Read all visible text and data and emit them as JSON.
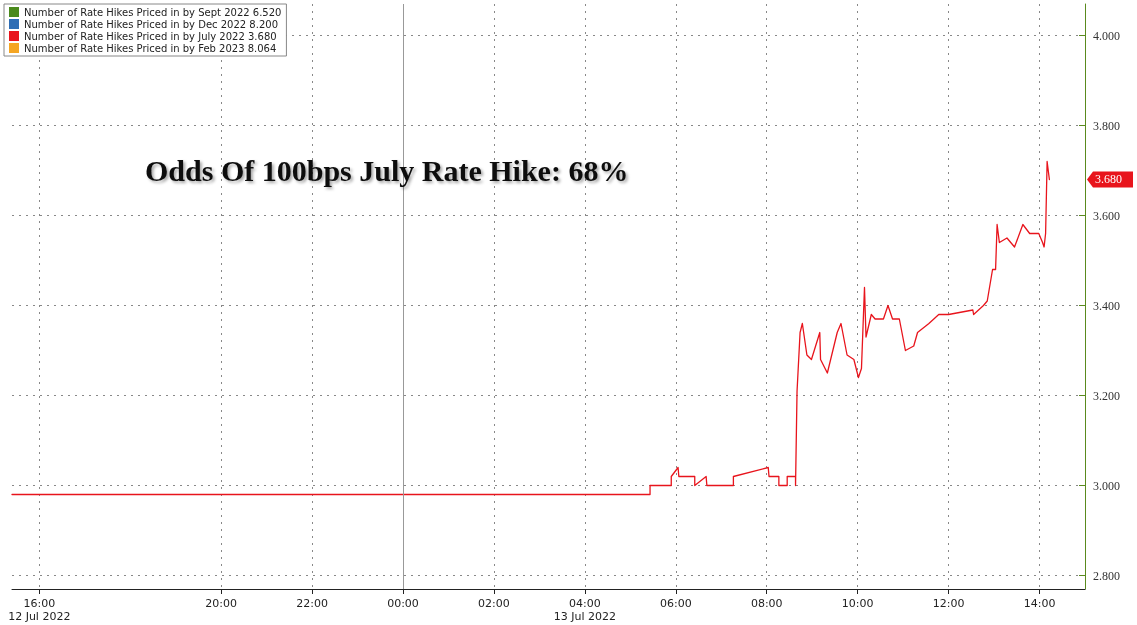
{
  "chart_data": {
    "type": "line",
    "title": "Odds Of 100bps July Rate Hike: 68%",
    "xlim": [
      "2022-07-12T15:24",
      "2022-07-13T15:00"
    ],
    "xticks": [
      {
        "value": "2022-07-12T16:00",
        "label": "16:00\n12 Jul 2022"
      },
      {
        "value": "2022-07-12T20:00",
        "label": "20:00"
      },
      {
        "value": "2022-07-12T22:00",
        "label": "22:00"
      },
      {
        "value": "2022-07-13T00:00",
        "label": "00:00"
      },
      {
        "value": "2022-07-13T02:00",
        "label": "02:00"
      },
      {
        "value": "2022-07-13T04:00",
        "label": "04:00\n13 Jul 2022"
      },
      {
        "value": "2022-07-13T06:00",
        "label": "06:00"
      },
      {
        "value": "2022-07-13T08:00",
        "label": "08:00"
      },
      {
        "value": "2022-07-13T10:00",
        "label": "10:00"
      },
      {
        "value": "2022-07-13T12:00",
        "label": "12:00"
      },
      {
        "value": "2022-07-13T14:00",
        "label": "14:00"
      }
    ],
    "ylim": [
      2.77,
      4.07
    ],
    "yticks": [
      {
        "value": 2.8,
        "label": "2.800"
      },
      {
        "value": 3.0,
        "label": "3.000"
      },
      {
        "value": 3.2,
        "label": "3.200"
      },
      {
        "value": 3.4,
        "label": "3.400"
      },
      {
        "value": 3.6,
        "label": "3.600"
      },
      {
        "value": 3.8,
        "label": "3.800"
      },
      {
        "value": 4.0,
        "label": "4.000"
      }
    ],
    "series": [
      {
        "name": "Number of Rate Hikes Priced in by Sept 2022 6.520",
        "color": "#4a8a1c"
      },
      {
        "name": "Number of Rate Hikes Priced in by Dec 2022 8.200",
        "color": "#2e6db4"
      },
      {
        "name": "Number of Rate Hikes Priced in by July 2022 3.680",
        "color": "#e8141c",
        "x": [
          "2022-07-12T15:24",
          "2022-07-13T05:26",
          "2022-07-13T05:26",
          "2022-07-13T05:54",
          "2022-07-13T05:54",
          "2022-07-13T06:03",
          "2022-07-13T06:04",
          "2022-07-13T06:25",
          "2022-07-13T06:25",
          "2022-07-13T06:40",
          "2022-07-13T06:41",
          "2022-07-13T07:16",
          "2022-07-13T07:16",
          "2022-07-13T08:02",
          "2022-07-13T08:03",
          "2022-07-13T08:16",
          "2022-07-13T08:16",
          "2022-07-13T08:27",
          "2022-07-13T08:27",
          "2022-07-13T08:38",
          "2022-07-13T08:38",
          "2022-07-13T08:40",
          "2022-07-13T08:44",
          "2022-07-13T08:47",
          "2022-07-13T08:53",
          "2022-07-13T08:59",
          "2022-07-13T09:10",
          "2022-07-13T09:11",
          "2022-07-13T09:20",
          "2022-07-13T09:33",
          "2022-07-13T09:38",
          "2022-07-13T09:46",
          "2022-07-13T09:55",
          "2022-07-13T10:01",
          "2022-07-13T10:05",
          "2022-07-13T10:09",
          "2022-07-13T10:11",
          "2022-07-13T10:18",
          "2022-07-13T10:23",
          "2022-07-13T10:34",
          "2022-07-13T10:40",
          "2022-07-13T10:46",
          "2022-07-13T10:55",
          "2022-07-13T11:03",
          "2022-07-13T11:14",
          "2022-07-13T11:19",
          "2022-07-13T11:34",
          "2022-07-13T11:47",
          "2022-07-13T12:00",
          "2022-07-13T12:32",
          "2022-07-13T12:33",
          "2022-07-13T12:46",
          "2022-07-13T12:51",
          "2022-07-13T12:58",
          "2022-07-13T13:02",
          "2022-07-13T13:04",
          "2022-07-13T13:07",
          "2022-07-13T13:17",
          "2022-07-13T13:27",
          "2022-07-13T13:38",
          "2022-07-13T13:47",
          "2022-07-13T13:59",
          "2022-07-13T14:04",
          "2022-07-13T14:06",
          "2022-07-13T14:08",
          "2022-07-13T14:10",
          "2022-07-13T14:13"
        ],
        "values": [
          2.98,
          2.98,
          3.0,
          3.0,
          3.02,
          3.04,
          3.02,
          3.02,
          3.0,
          3.02,
          3.0,
          3.0,
          3.02,
          3.04,
          3.02,
          3.02,
          3.0,
          3.0,
          3.02,
          3.02,
          3.0,
          3.21,
          3.34,
          3.36,
          3.29,
          3.28,
          3.34,
          3.28,
          3.25,
          3.34,
          3.36,
          3.29,
          3.28,
          3.24,
          3.26,
          3.44,
          3.33,
          3.38,
          3.37,
          3.37,
          3.4,
          3.37,
          3.37,
          3.3,
          3.31,
          3.34,
          3.36,
          3.38,
          3.38,
          3.39,
          3.38,
          3.4,
          3.41,
          3.48,
          3.48,
          3.58,
          3.54,
          3.55,
          3.53,
          3.58,
          3.56,
          3.56,
          3.54,
          3.53,
          3.56,
          3.72,
          3.68
        ]
      },
      {
        "name": "Number of Rate Hikes Priced in by Feb 2023 8.064",
        "color": "#f5a623"
      }
    ],
    "ref_lines": [
      {
        "axis": "x",
        "value": "2022-07-13T00:00",
        "color": "#999999"
      }
    ],
    "annotations": [
      "3.680"
    ],
    "grid": true,
    "legend": "top left",
    "marker": "none",
    "line_style": "solid"
  }
}
